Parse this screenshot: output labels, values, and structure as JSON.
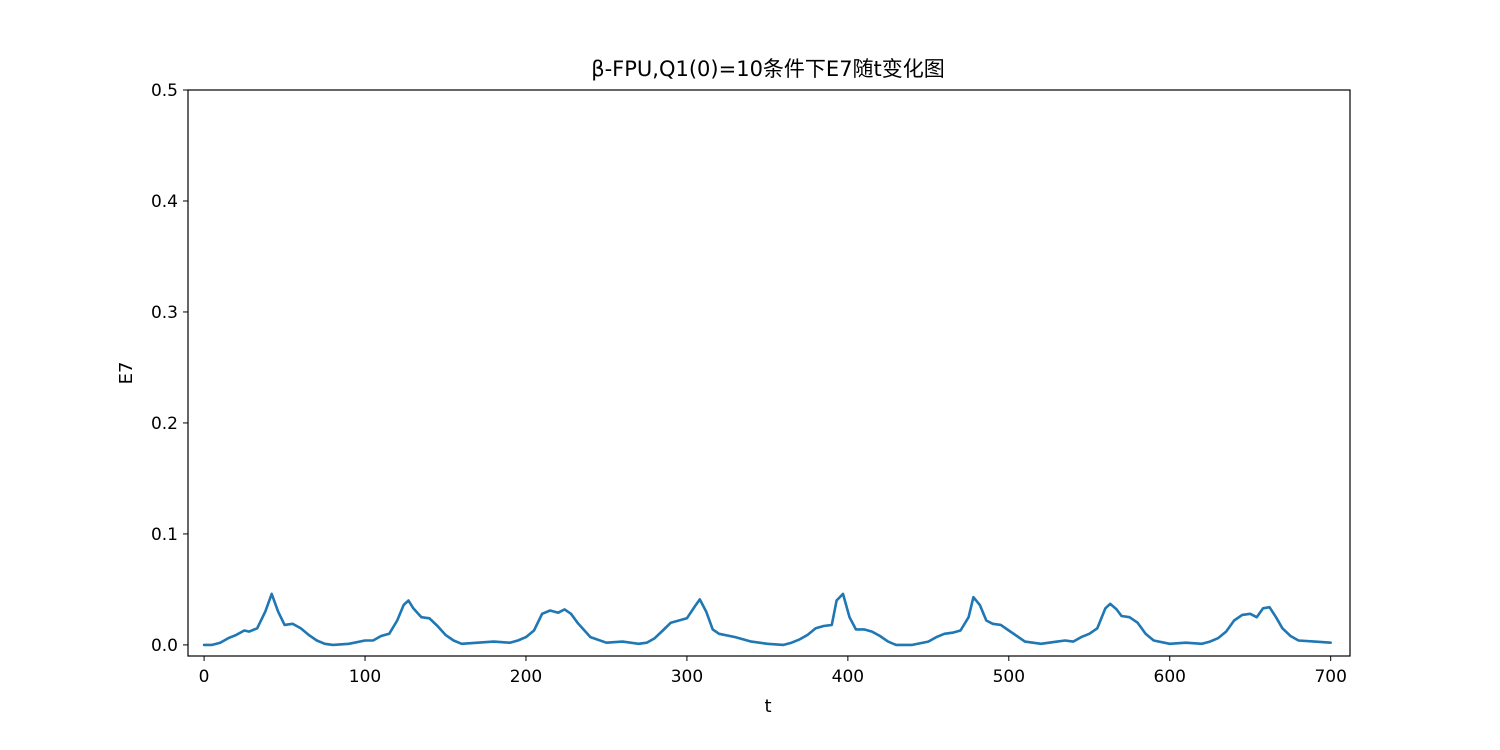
{
  "chart_data": {
    "type": "line",
    "title": "β-FPU,Q1(0)=10条件下E7随t变化图",
    "xlabel": "t",
    "ylabel": "E7",
    "xlim": [
      -10,
      712
    ],
    "ylim": [
      -0.01,
      0.5
    ],
    "xticks": [
      0,
      100,
      200,
      300,
      400,
      500,
      600,
      700
    ],
    "yticks": [
      0.0,
      0.1,
      0.2,
      0.3,
      0.4,
      0.5
    ],
    "xtick_labels": [
      "0",
      "100",
      "200",
      "300",
      "400",
      "500",
      "600",
      "700"
    ],
    "ytick_labels": [
      "0.0",
      "0.1",
      "0.2",
      "0.3",
      "0.4",
      "0.5"
    ],
    "grid": false,
    "series": [
      {
        "color": "#1f77b4",
        "x": [
          0,
          5,
          10,
          15,
          20,
          25,
          28,
          33,
          38,
          42,
          46,
          50,
          55,
          60,
          65,
          70,
          75,
          80,
          90,
          100,
          105,
          110,
          115,
          120,
          124,
          127,
          130,
          135,
          140,
          145,
          150,
          155,
          160,
          170,
          180,
          190,
          195,
          200,
          205,
          210,
          215,
          220,
          224,
          228,
          232,
          240,
          250,
          260,
          270,
          275,
          280,
          285,
          290,
          295,
          300,
          305,
          308,
          312,
          316,
          320,
          330,
          340,
          350,
          360,
          365,
          370,
          375,
          380,
          385,
          390,
          393,
          397,
          401,
          405,
          410,
          415,
          420,
          425,
          430,
          440,
          450,
          455,
          460,
          465,
          470,
          475,
          478,
          482,
          486,
          490,
          495,
          500,
          505,
          510,
          520,
          530,
          535,
          540,
          545,
          550,
          555,
          560,
          563,
          567,
          570,
          575,
          580,
          585,
          590,
          600,
          610,
          620,
          625,
          630,
          635,
          640,
          645,
          650,
          654,
          658,
          662,
          666,
          670,
          675,
          680,
          690,
          700
        ],
        "y": [
          0.0,
          0.0,
          0.002,
          0.006,
          0.009,
          0.013,
          0.012,
          0.015,
          0.03,
          0.046,
          0.03,
          0.018,
          0.019,
          0.015,
          0.009,
          0.004,
          0.001,
          0.0,
          0.001,
          0.004,
          0.004,
          0.008,
          0.01,
          0.022,
          0.036,
          0.04,
          0.033,
          0.025,
          0.024,
          0.017,
          0.009,
          0.004,
          0.001,
          0.002,
          0.003,
          0.002,
          0.004,
          0.007,
          0.013,
          0.028,
          0.031,
          0.029,
          0.032,
          0.028,
          0.02,
          0.007,
          0.002,
          0.003,
          0.001,
          0.002,
          0.006,
          0.013,
          0.02,
          0.022,
          0.024,
          0.035,
          0.041,
          0.03,
          0.014,
          0.01,
          0.007,
          0.003,
          0.001,
          0.0,
          0.002,
          0.005,
          0.009,
          0.015,
          0.017,
          0.018,
          0.04,
          0.046,
          0.025,
          0.014,
          0.014,
          0.012,
          0.008,
          0.003,
          0.0,
          0.0,
          0.003,
          0.007,
          0.01,
          0.011,
          0.013,
          0.025,
          0.043,
          0.036,
          0.022,
          0.019,
          0.018,
          0.013,
          0.008,
          0.003,
          0.001,
          0.003,
          0.004,
          0.003,
          0.007,
          0.01,
          0.015,
          0.033,
          0.037,
          0.032,
          0.026,
          0.025,
          0.02,
          0.01,
          0.004,
          0.001,
          0.002,
          0.001,
          0.003,
          0.006,
          0.012,
          0.022,
          0.027,
          0.028,
          0.025,
          0.033,
          0.034,
          0.025,
          0.015,
          0.008,
          0.004,
          0.003,
          0.002
        ]
      }
    ]
  }
}
